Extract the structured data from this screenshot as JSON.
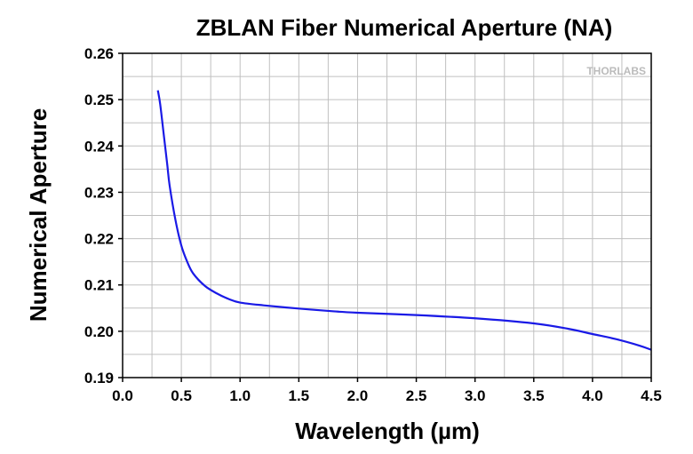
{
  "chart_data": {
    "type": "line",
    "title": "ZBLAN Fiber Numerical Aperture (NA)",
    "xlabel": "Wavelength (µm)",
    "ylabel": "Numerical Aperture",
    "xlim": [
      0.0,
      4.5
    ],
    "ylim": [
      0.19,
      0.26
    ],
    "xticks": [
      "0.0",
      "0.5",
      "1.0",
      "1.5",
      "2.0",
      "2.5",
      "3.0",
      "3.5",
      "4.0",
      "4.5"
    ],
    "yticks": [
      "0.19",
      "0.20",
      "0.21",
      "0.22",
      "0.23",
      "0.24",
      "0.25",
      "0.26"
    ],
    "grid": true,
    "watermark": "THORLABS",
    "series": [
      {
        "name": "NA",
        "color": "#1a1ae6",
        "x": [
          0.3,
          0.32,
          0.35,
          0.38,
          0.4,
          0.45,
          0.5,
          0.55,
          0.6,
          0.7,
          0.8,
          0.9,
          1.0,
          1.2,
          1.5,
          1.8,
          2.0,
          2.5,
          3.0,
          3.5,
          3.8,
          4.0,
          4.2,
          4.4,
          4.5
        ],
        "y": [
          0.252,
          0.249,
          0.2425,
          0.236,
          0.2315,
          0.224,
          0.2185,
          0.215,
          0.2125,
          0.2098,
          0.2082,
          0.207,
          0.2062,
          0.2056,
          0.2049,
          0.2043,
          0.204,
          0.2035,
          0.2028,
          0.2017,
          0.2005,
          0.1994,
          0.1983,
          0.1969,
          0.196
        ]
      }
    ]
  }
}
